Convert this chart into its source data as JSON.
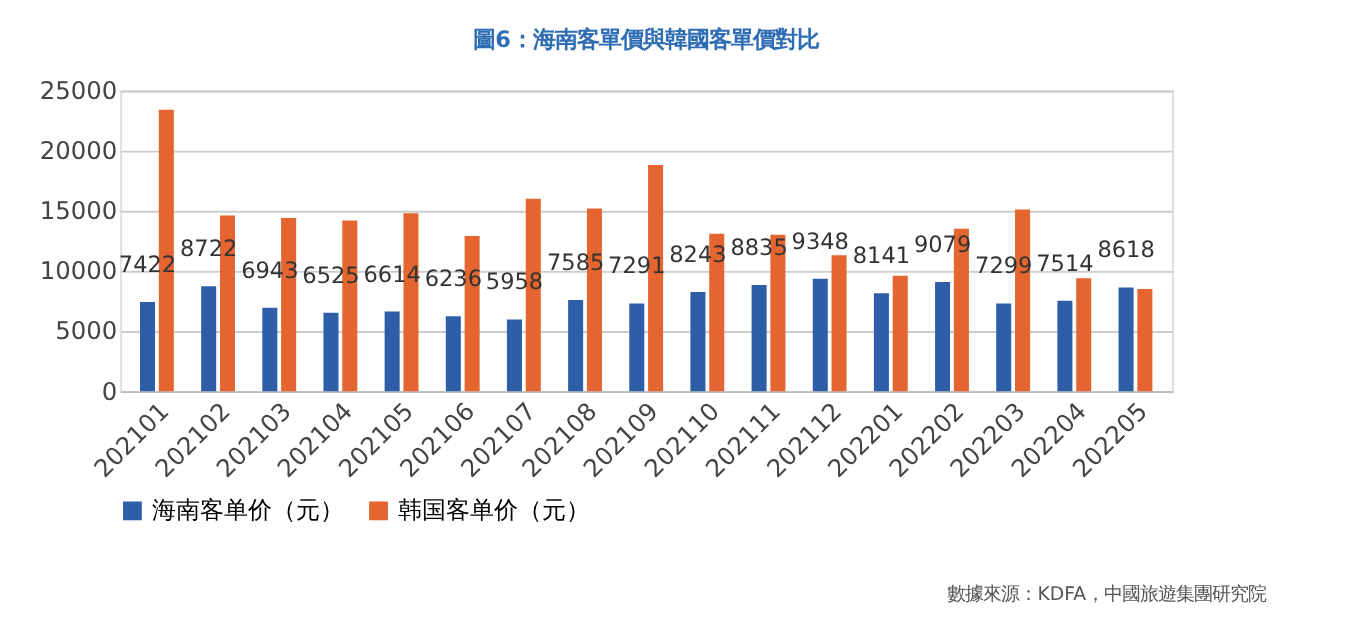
{
  "chart_data": {
    "type": "bar",
    "title": "圖6：海南客單價與韓國客單價對比",
    "categories": [
      "202101",
      "202102",
      "202103",
      "202104",
      "202105",
      "202106",
      "202107",
      "202108",
      "202109",
      "202110",
      "202111",
      "202112",
      "202201",
      "202202",
      "202203",
      "202204",
      "202205"
    ],
    "series": [
      {
        "name": "海南客单价（元）",
        "color": "#2e5ea8",
        "values": [
          7422,
          8722,
          6943,
          6525,
          6614,
          6236,
          5958,
          7585,
          7291,
          8243,
          8835,
          9348,
          8141,
          9079,
          7299,
          7514,
          8618
        ],
        "value_labels": [
          "7422",
          "8722",
          "6943",
          "6525",
          "6614",
          "6236",
          "5958",
          "7585",
          "7291",
          "8243",
          "8835",
          "9348",
          "8141",
          "9079",
          "7299",
          "7514",
          "8618"
        ]
      },
      {
        "name": "韩国客单价（元）",
        "color": "#e4652f",
        "values": [
          23400,
          14600,
          14400,
          14200,
          14800,
          12900,
          16000,
          15200,
          18800,
          13100,
          13000,
          11300,
          9600,
          13500,
          15100,
          9400,
          8500
        ]
      }
    ],
    "ylim": [
      0,
      25000
    ],
    "yticks": [
      0,
      5000,
      10000,
      15000,
      20000,
      25000
    ],
    "grid": "y",
    "legend": "bottom",
    "annotations": [
      "數據來源：KDFA，中國旅遊集團研究院"
    ]
  }
}
